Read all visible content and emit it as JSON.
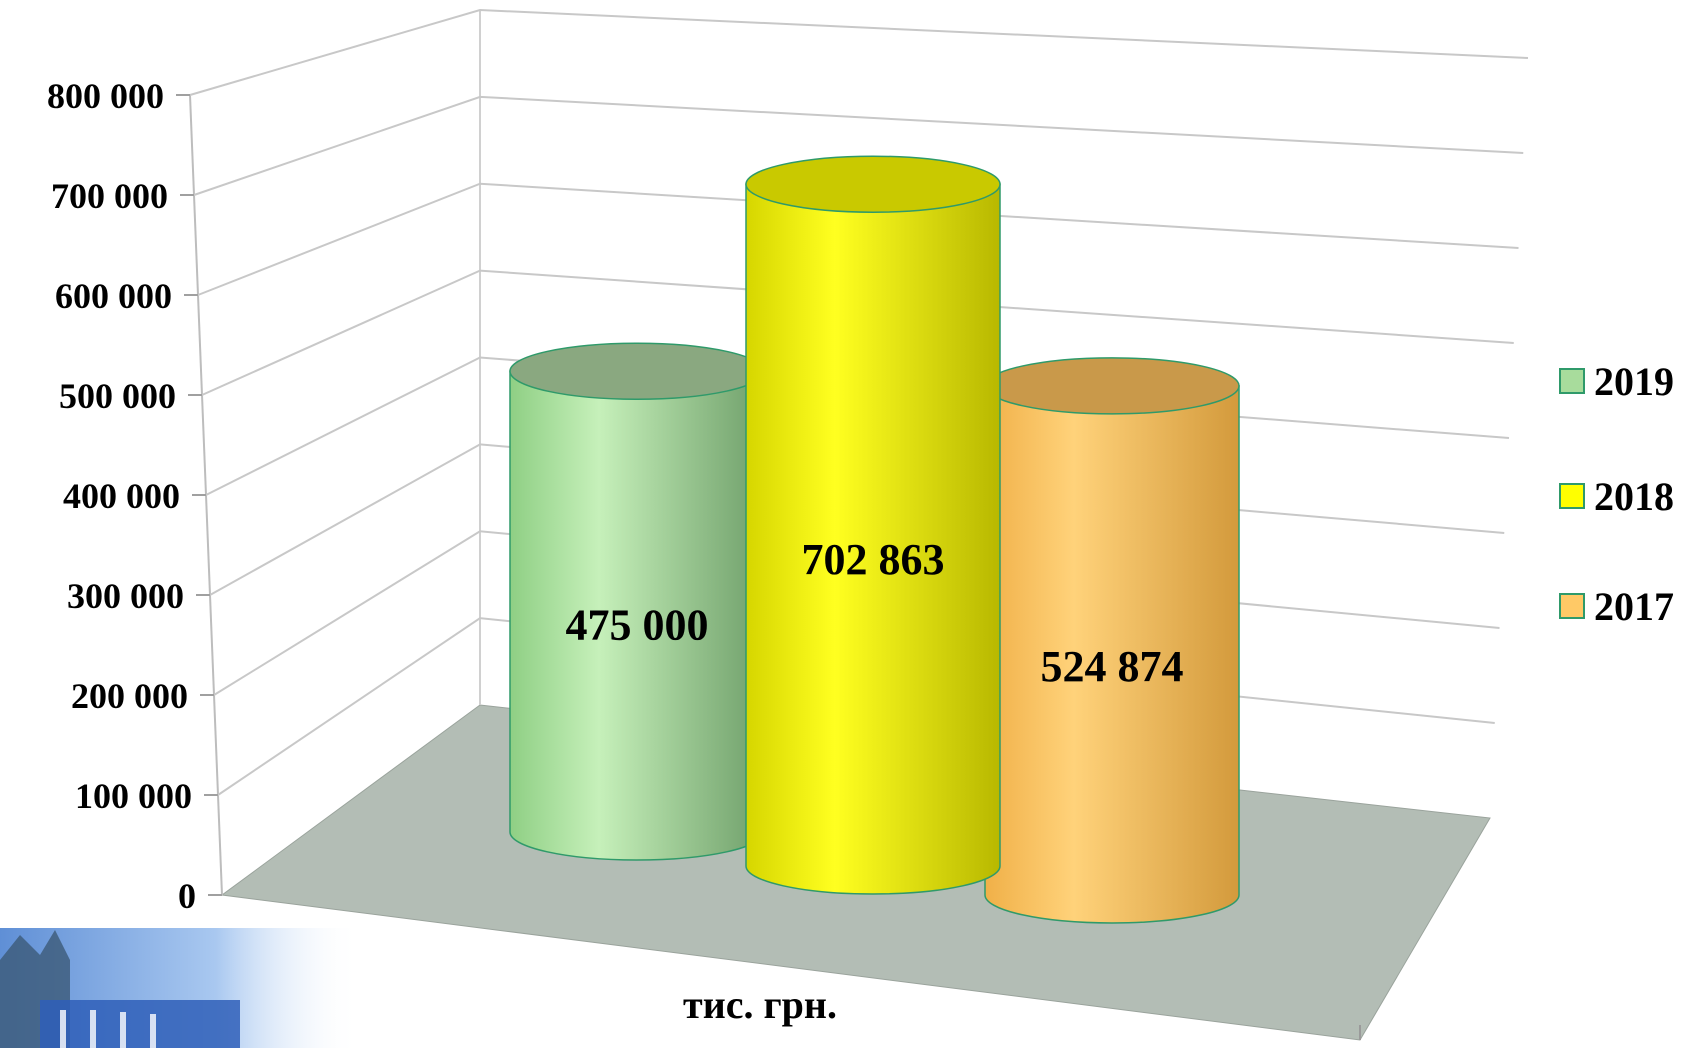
{
  "chart_data": {
    "type": "bar",
    "style": "3d-cylinder",
    "title": "",
    "xlabel": "тис. грн.",
    "ylabel": "",
    "ylim": [
      0,
      800000
    ],
    "yticks": [
      0,
      100000,
      200000,
      300000,
      400000,
      500000,
      600000,
      700000,
      800000
    ],
    "ytick_labels": [
      "0",
      "100 000",
      "200 000",
      "300 000",
      "400 000",
      "500 000",
      "600 000",
      "700 000",
      "800 000"
    ],
    "grid": true,
    "legend_position": "right",
    "categories": [
      "тис. грн."
    ],
    "series": [
      {
        "name": "2019",
        "values": [
          475000
        ],
        "label": "475 000",
        "color": "#a8dc9c"
      },
      {
        "name": "2018",
        "values": [
          702863
        ],
        "label": "702 863",
        "color": "#ffff00"
      },
      {
        "name": "2017",
        "values": [
          524874
        ],
        "label": "524 874",
        "color": "#ffc966"
      }
    ],
    "legend_order": [
      "2019",
      "2018",
      "2017"
    ]
  }
}
